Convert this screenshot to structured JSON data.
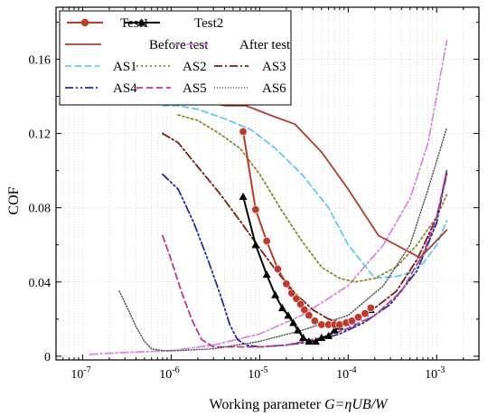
{
  "chart_data": {
    "type": "line",
    "title": "",
    "xlabel_prefix": "Working parameter ",
    "xlabel_formula": "G=ηUB/W",
    "ylabel": "COF",
    "x_scale": "log",
    "xlim": [
      5e-08,
      0.003
    ],
    "ylim": [
      -0.002,
      0.188
    ],
    "x_ticks": [
      1e-07,
      1e-06,
      1e-05,
      0.0001,
      0.001
    ],
    "x_tick_labels": [
      {
        "base": "10",
        "exp": "-7"
      },
      {
        "base": "10",
        "exp": "-6"
      },
      {
        "base": "10",
        "exp": "-5"
      },
      {
        "base": "10",
        "exp": "-4"
      },
      {
        "base": "10",
        "exp": "-3"
      }
    ],
    "y_ticks": [
      0,
      0.04,
      0.08,
      0.12,
      0.16
    ],
    "y_tick_labels": [
      "0",
      "0.04",
      "0.08",
      "0.12",
      "0.16"
    ],
    "grid": true,
    "legend_position": "top-left",
    "series": [
      {
        "name": "Test1",
        "color": "#c0392b",
        "style": "solid",
        "width": 2,
        "marker": "circle",
        "x": [
          6.5e-06,
          9e-06,
          1.2e-05,
          1.6e-05,
          2e-05,
          2.3e-05,
          2.6e-05,
          2.9e-05,
          3.2e-05,
          3.6e-05,
          4.2e-05,
          5e-05,
          6e-05,
          7e-05,
          8e-05,
          9.5e-05,
          0.00011,
          0.00013,
          0.000155,
          0.00018
        ],
        "y": [
          0.121,
          0.079,
          0.062,
          0.047,
          0.039,
          0.034,
          0.031,
          0.028,
          0.025,
          0.022,
          0.019,
          0.017,
          0.017,
          0.017,
          0.017,
          0.018,
          0.019,
          0.021,
          0.023,
          0.026
        ]
      },
      {
        "name": "Test2",
        "color": "#000000",
        "style": "solid",
        "width": 2,
        "marker": "triangle",
        "x": [
          6.5e-06,
          9e-06,
          1.2e-05,
          1.5e-05,
          1.8e-05,
          2.1e-05,
          2.4e-05,
          2.7e-05,
          3.1e-05,
          3.6e-05,
          4.3e-05,
          5e-05,
          6e-05,
          7e-05,
          8e-05,
          9.5e-05,
          0.00011,
          0.00013,
          0.000155,
          0.00018
        ],
        "y": [
          0.086,
          0.06,
          0.044,
          0.033,
          0.026,
          0.022,
          0.018,
          0.014,
          0.01,
          0.008,
          0.008,
          0.01,
          0.011,
          0.014,
          0.016,
          0.018,
          0.019,
          0.021,
          0.023,
          0.025
        ]
      },
      {
        "name": "Before test",
        "color": "#b33a2e",
        "style": "solid",
        "width": 1.8,
        "marker": "none",
        "x": [
          8e-07,
          1.2e-06,
          2e-06,
          4e-06,
          7e-06,
          1.3e-05,
          2.5e-05,
          5e-05,
          0.0001,
          0.00022,
          0.00065,
          0.0013
        ],
        "y": [
          0.137,
          0.14,
          0.138,
          0.135,
          0.135,
          0.13,
          0.125,
          0.11,
          0.09,
          0.065,
          0.053,
          0.068
        ]
      },
      {
        "name": "After test",
        "color": "#d88be0",
        "style": "dashdot",
        "width": 1.8,
        "marker": "none",
        "x": [
          1.2e-07,
          3e-07,
          1e-06,
          3e-06,
          1e-05,
          3e-05,
          0.0001,
          0.00025,
          0.0005,
          0.0008,
          0.0013
        ],
        "y": [
          0.001,
          0.002,
          0.003,
          0.006,
          0.012,
          0.022,
          0.038,
          0.06,
          0.085,
          0.115,
          0.17
        ]
      },
      {
        "name": "AS1",
        "color": "#5ecbef",
        "style": "dashed",
        "width": 1.8,
        "marker": "none",
        "x": [
          8e-07,
          1.2e-06,
          2e-06,
          4e-06,
          8e-06,
          1.5e-05,
          3e-05,
          6e-05,
          0.0001,
          0.0002,
          0.00035,
          0.0005,
          0.0007,
          0.001,
          0.0013
        ],
        "y": [
          0.135,
          0.135,
          0.133,
          0.128,
          0.122,
          0.112,
          0.098,
          0.08,
          0.06,
          0.042,
          0.043,
          0.045,
          0.05,
          0.06,
          0.073
        ]
      },
      {
        "name": "AS2",
        "color": "#8a8a2a",
        "style": "dotted",
        "width": 1.8,
        "marker": "none",
        "x": [
          1.2e-06,
          2e-06,
          3.5e-06,
          6e-06,
          1e-05,
          1.8e-05,
          3e-05,
          5e-05,
          8e-05,
          0.00012,
          0.0002,
          0.00035,
          0.0006,
          0.001,
          0.0013
        ],
        "y": [
          0.13,
          0.127,
          0.12,
          0.112,
          0.098,
          0.078,
          0.062,
          0.048,
          0.042,
          0.04,
          0.042,
          0.048,
          0.06,
          0.075,
          0.087
        ]
      },
      {
        "name": "AS3",
        "color": "#7a1f14",
        "style": "dashdot",
        "width": 1.8,
        "marker": "none",
        "x": [
          8e-07,
          1.2e-06,
          2e-06,
          3.5e-06,
          6e-06,
          1e-05,
          1.6e-05,
          2.5e-05,
          4e-05,
          6e-05,
          9e-05,
          0.00013,
          0.0002,
          0.00035,
          0.0006,
          0.001,
          0.0013
        ],
        "y": [
          0.12,
          0.115,
          0.102,
          0.088,
          0.073,
          0.058,
          0.045,
          0.034,
          0.025,
          0.02,
          0.018,
          0.02,
          0.026,
          0.035,
          0.052,
          0.075,
          0.098
        ]
      },
      {
        "name": "AS4",
        "color": "#1f2f9e",
        "style": "dashdotdot",
        "width": 1.8,
        "marker": "none",
        "x": [
          8e-07,
          1.2e-06,
          1.8e-06,
          2.6e-06,
          3.6e-06,
          4.6e-06,
          5.6e-06,
          7e-06,
          1e-05,
          2e-05,
          4e-05,
          8e-05,
          0.00015,
          0.0003,
          0.0006,
          0.001,
          0.0013
        ],
        "y": [
          0.098,
          0.09,
          0.072,
          0.052,
          0.033,
          0.017,
          0.009,
          0.006,
          0.005,
          0.006,
          0.008,
          0.012,
          0.018,
          0.028,
          0.046,
          0.072,
          0.1
        ]
      },
      {
        "name": "AS5",
        "color": "#c2388a",
        "style": "dashed",
        "width": 1.8,
        "marker": "none",
        "x": [
          8e-07,
          1e-06,
          1.3e-06,
          1.7e-06,
          2.2e-06,
          3e-06,
          5e-06,
          1e-05,
          2e-05,
          5e-05,
          0.0001,
          0.0002,
          0.0004,
          0.0007,
          0.001,
          0.0013
        ],
        "y": [
          0.065,
          0.052,
          0.035,
          0.02,
          0.009,
          0.005,
          0.005,
          0.005,
          0.006,
          0.01,
          0.015,
          0.022,
          0.035,
          0.055,
          0.075,
          0.1
        ]
      },
      {
        "name": "AS6",
        "color": "#555555",
        "style": "densedotted",
        "width": 1.5,
        "marker": "none",
        "x": [
          2.6e-07,
          3.2e-07,
          4e-07,
          5e-07,
          6e-07,
          8e-07,
          1.2e-06,
          3e-06,
          1e-05,
          3e-05,
          0.0001,
          0.00025,
          0.0005,
          0.0008,
          0.0013
        ],
        "y": [
          0.035,
          0.026,
          0.016,
          0.008,
          0.004,
          0.003,
          0.003,
          0.004,
          0.008,
          0.014,
          0.022,
          0.038,
          0.06,
          0.09,
          0.123
        ]
      }
    ]
  }
}
